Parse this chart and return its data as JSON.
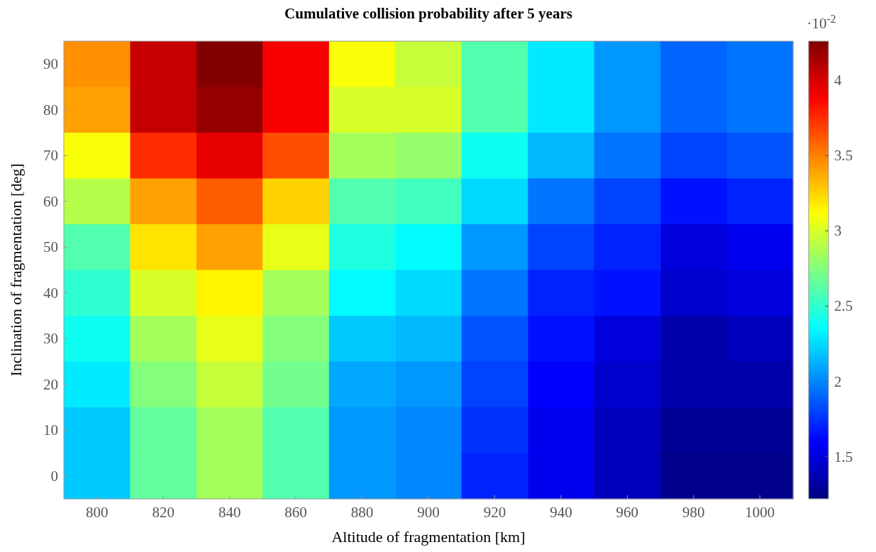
{
  "chart_data": {
    "type": "heatmap",
    "title": "Cumulative collision probability after 5 years",
    "xlabel": "Altitude of fragmentation [km]",
    "ylabel": "Inclination of fragmentation [deg]",
    "clabel": "·10$^{-2}$",
    "categories": [
      "800",
      "820",
      "840",
      "860",
      "880",
      "900",
      "920",
      "940",
      "960",
      "980",
      "1000"
    ],
    "y_categories": [
      "90",
      "80",
      "70",
      "60",
      "50",
      "40",
      "30",
      "20",
      "10",
      "0"
    ],
    "cells": [
      [
        3.45,
        4.05,
        4.25,
        3.9,
        3.1,
        2.95,
        2.6,
        2.3,
        2.05,
        1.9,
        1.95
      ],
      [
        3.4,
        4.05,
        4.2,
        3.9,
        3.0,
        3.0,
        2.6,
        2.3,
        2.05,
        1.9,
        1.95
      ],
      [
        3.1,
        3.75,
        3.95,
        3.65,
        2.85,
        2.8,
        2.4,
        2.15,
        1.95,
        1.8,
        1.85
      ],
      [
        2.9,
        3.4,
        3.6,
        3.25,
        2.6,
        2.55,
        2.25,
        1.95,
        1.8,
        1.65,
        1.7
      ],
      [
        2.6,
        3.2,
        3.4,
        3.05,
        2.45,
        2.35,
        2.05,
        1.8,
        1.7,
        1.5,
        1.55
      ],
      [
        2.5,
        3.0,
        3.15,
        2.85,
        2.35,
        2.25,
        1.95,
        1.7,
        1.65,
        1.45,
        1.5
      ],
      [
        2.4,
        2.85,
        3.05,
        2.75,
        2.2,
        2.15,
        1.85,
        1.65,
        1.5,
        1.35,
        1.4
      ],
      [
        2.3,
        2.75,
        2.95,
        2.7,
        2.1,
        2.05,
        1.8,
        1.6,
        1.45,
        1.35,
        1.35
      ],
      [
        2.2,
        2.65,
        2.85,
        2.6,
        2.05,
        2.0,
        1.75,
        1.55,
        1.4,
        1.28,
        1.28
      ],
      [
        2.2,
        2.65,
        2.85,
        2.6,
        2.05,
        2.0,
        1.7,
        1.55,
        1.4,
        1.25,
        1.25
      ]
    ],
    "clim": [
      1.22,
      4.26
    ],
    "cticks": [
      1.5,
      2,
      2.5,
      3,
      3.5,
      4
    ]
  }
}
